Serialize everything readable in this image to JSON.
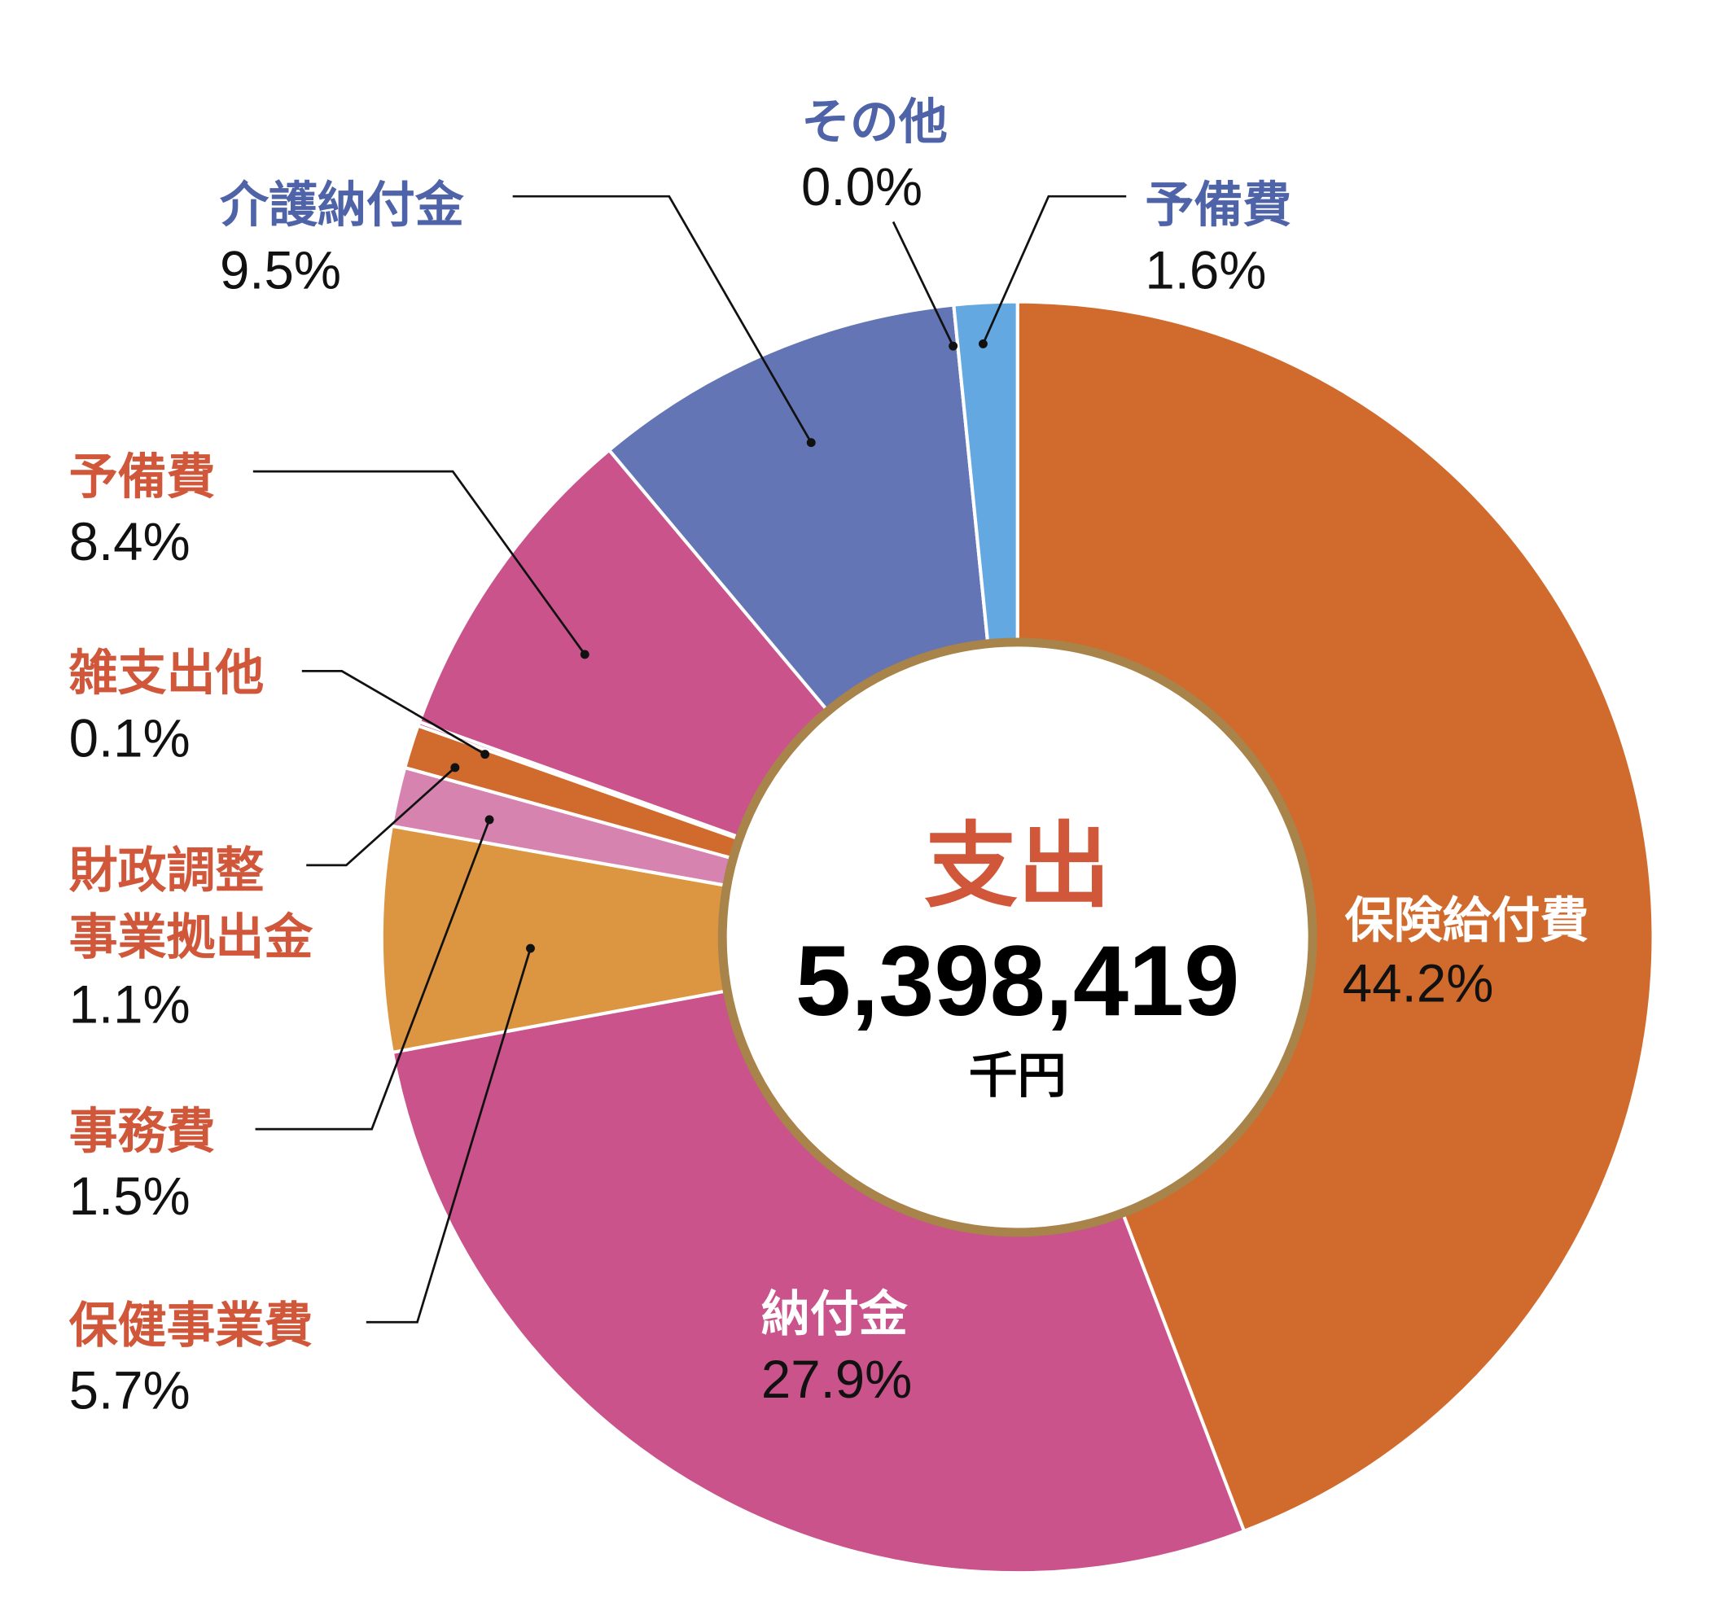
{
  "chart_data": {
    "type": "pie",
    "variant": "donut",
    "title": "支出",
    "total_value": "5,398,419",
    "total_unit": "千円",
    "slices": [
      {
        "label": "保険給付費",
        "value": 44.2,
        "value_label": "44.2%",
        "color": "#D16B2D",
        "label_color": "#FFFFFF"
      },
      {
        "label": "納付金",
        "value": 27.9,
        "value_label": "27.9%",
        "color": "#C9538A",
        "label_color": "#FFFFFF"
      },
      {
        "label": "保健事業費",
        "value": 5.7,
        "value_label": "5.7%",
        "color": "#DC9641",
        "label_color": "#D0573A"
      },
      {
        "label": "事務費",
        "value": 1.5,
        "value_label": "1.5%",
        "color": "#D683B0",
        "label_color": "#D0573A"
      },
      {
        "label": "財政調整事業拠出金",
        "label_lines": [
          "財政調整",
          "事業拠出金"
        ],
        "value": 1.1,
        "value_label": "1.1%",
        "color": "#D16B2D",
        "label_color": "#D0573A"
      },
      {
        "label": "雑支出他",
        "value": 0.1,
        "value_label": "0.1%",
        "color": "#C9538A",
        "label_color": "#D0573A"
      },
      {
        "label": "予備費",
        "value": 8.4,
        "value_label": "8.4%",
        "color": "#C9538A",
        "label_color": "#D0573A"
      },
      {
        "label": "介護納付金",
        "value": 9.5,
        "value_label": "9.5%",
        "color": "#6375B4",
        "label_color": "#4F63A8"
      },
      {
        "label": "その他",
        "value": 0.0,
        "value_label": "0.0%",
        "color": "#6375B4",
        "label_color": "#4F63A8"
      },
      {
        "label": "予備費",
        "value": 1.6,
        "value_label": "1.6%",
        "color": "#63A8E0",
        "label_color": "#4F63A8"
      }
    ],
    "colors": {
      "title": "#D0573A",
      "ring_border": "#A8834A"
    }
  }
}
